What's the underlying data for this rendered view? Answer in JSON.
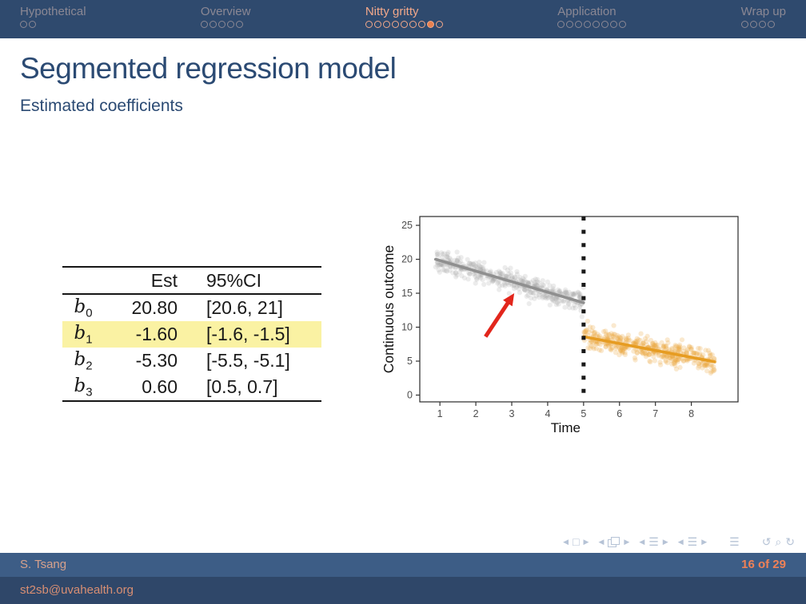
{
  "nav": {
    "sections": [
      {
        "label": "Hypothetical",
        "dots": 2,
        "filled": -1,
        "active": false
      },
      {
        "label": "Overview",
        "dots": 5,
        "filled": -1,
        "active": false
      },
      {
        "label": "Nitty gritty",
        "dots": 9,
        "filled": 7,
        "active": true
      },
      {
        "label": "Application",
        "dots": 8,
        "filled": -1,
        "active": false
      },
      {
        "label": "Wrap up",
        "dots": 4,
        "filled": -1,
        "active": false
      }
    ]
  },
  "header": {
    "title": "Segmented regression model",
    "subtitle": "Estimated coefficients"
  },
  "table": {
    "columns": [
      "",
      "Est",
      "95%CI"
    ],
    "rows": [
      {
        "term": "b",
        "sub": "0",
        "est": "20.80",
        "ci": "[20.6, 21]",
        "highlight": false
      },
      {
        "term": "b",
        "sub": "1",
        "est": "-1.60",
        "ci": "[-1.6, -1.5]",
        "highlight": true
      },
      {
        "term": "b",
        "sub": "2",
        "est": "-5.30",
        "ci": "[-5.5, -5.1]",
        "highlight": false
      },
      {
        "term": "b",
        "sub": "3",
        "est": "0.60",
        "ci": "[0.5, 0.7]",
        "highlight": false
      }
    ],
    "highlight_color": "#faf2a3"
  },
  "chart_data": {
    "type": "scatter",
    "title": "",
    "xlabel": "Time",
    "ylabel": "Continuous outcome",
    "xlim": [
      0.44,
      9.3
    ],
    "ylim": [
      -1.0,
      26.3
    ],
    "xticks": [
      1,
      2,
      3,
      4,
      5,
      6,
      7,
      8
    ],
    "yticks": [
      0,
      5,
      10,
      15,
      20,
      25
    ],
    "grid": false,
    "panel_border": true,
    "intervention_line": {
      "x": 5,
      "style": "dotted",
      "color": "#1a1a1a"
    },
    "series": [
      {
        "name": "pre-intervention",
        "point_color": "#9e9e9e",
        "line_color": "#8f8f8f",
        "point_opacity": 0.2,
        "x_start": 0.88,
        "x_end": 5.0,
        "y_start": 20.0,
        "y_end": 13.6,
        "n_points": 430,
        "noise_sd": 0.8
      },
      {
        "name": "post-intervention",
        "point_color": "#eaa63e",
        "line_color": "#e69c22",
        "point_opacity": 0.25,
        "x_start": 5.0,
        "x_end": 8.65,
        "y_start": 8.6,
        "y_end": 4.9,
        "n_points": 430,
        "noise_sd": 0.85
      }
    ],
    "arrow_annotation": {
      "x_from": 2.27,
      "y_from": 8.6,
      "x_to": 3.07,
      "y_to": 15.0,
      "color": "#e2261c"
    }
  },
  "footer": {
    "author": "S. Tsang",
    "email": "st2sb@uvahealth.org",
    "page": "16 of 29",
    "nav_symbols": [
      {
        "far": false,
        "items": [
          {
            "name": "prev-slide-icon",
            "glyph": "◀",
            "kind": "tri"
          },
          {
            "name": "slide-icon",
            "glyph": "□",
            "kind": "glyph"
          },
          {
            "name": "next-slide-icon",
            "glyph": "▶",
            "kind": "tri"
          }
        ]
      },
      {
        "far": false,
        "items": [
          {
            "name": "prev-frame-icon",
            "glyph": "◀",
            "kind": "tri"
          },
          {
            "name": "frames-icon",
            "glyph": "",
            "kind": "frames"
          },
          {
            "name": "next-frame-icon",
            "glyph": "▶",
            "kind": "tri"
          }
        ]
      },
      {
        "far": false,
        "items": [
          {
            "name": "prev-subsection-icon",
            "glyph": "◀",
            "kind": "tri"
          },
          {
            "name": "subsection-icon",
            "glyph": "☰",
            "kind": "glyph"
          },
          {
            "name": "next-subsection-icon",
            "glyph": "▶",
            "kind": "tri"
          }
        ]
      },
      {
        "far": false,
        "items": [
          {
            "name": "prev-section-icon",
            "glyph": "◀",
            "kind": "tri"
          },
          {
            "name": "section-icon",
            "glyph": "☰",
            "kind": "glyph"
          },
          {
            "name": "next-section-icon",
            "glyph": "▶",
            "kind": "tri"
          }
        ]
      },
      {
        "far": true,
        "items": [
          {
            "name": "presentation-icon",
            "glyph": "☰",
            "kind": "glyph"
          }
        ]
      },
      {
        "far": true,
        "items": [
          {
            "name": "back-icon",
            "glyph": "↺",
            "kind": "glyph"
          },
          {
            "name": "find-icon",
            "glyph": "⌕",
            "kind": "glyph"
          },
          {
            "name": "forward-icon",
            "glyph": "↻",
            "kind": "glyph"
          }
        ]
      }
    ]
  },
  "colors": {
    "topbar_bg": "#2f4a6e",
    "footer_mid_bg": "#3d5d86",
    "footer_bottom_bg": "#2f4769",
    "nav_muted": "#8b8894",
    "nav_active": "#f2a88a",
    "nav_dot_filled": "#e8804f",
    "title_blue": "#2b4a73",
    "highlight_yellow": "#faf2a3",
    "arrow_red": "#e2261c",
    "gray_series": "#9e9e9e",
    "orange_series": "#eaa63e",
    "page_number": "#ef8157"
  }
}
